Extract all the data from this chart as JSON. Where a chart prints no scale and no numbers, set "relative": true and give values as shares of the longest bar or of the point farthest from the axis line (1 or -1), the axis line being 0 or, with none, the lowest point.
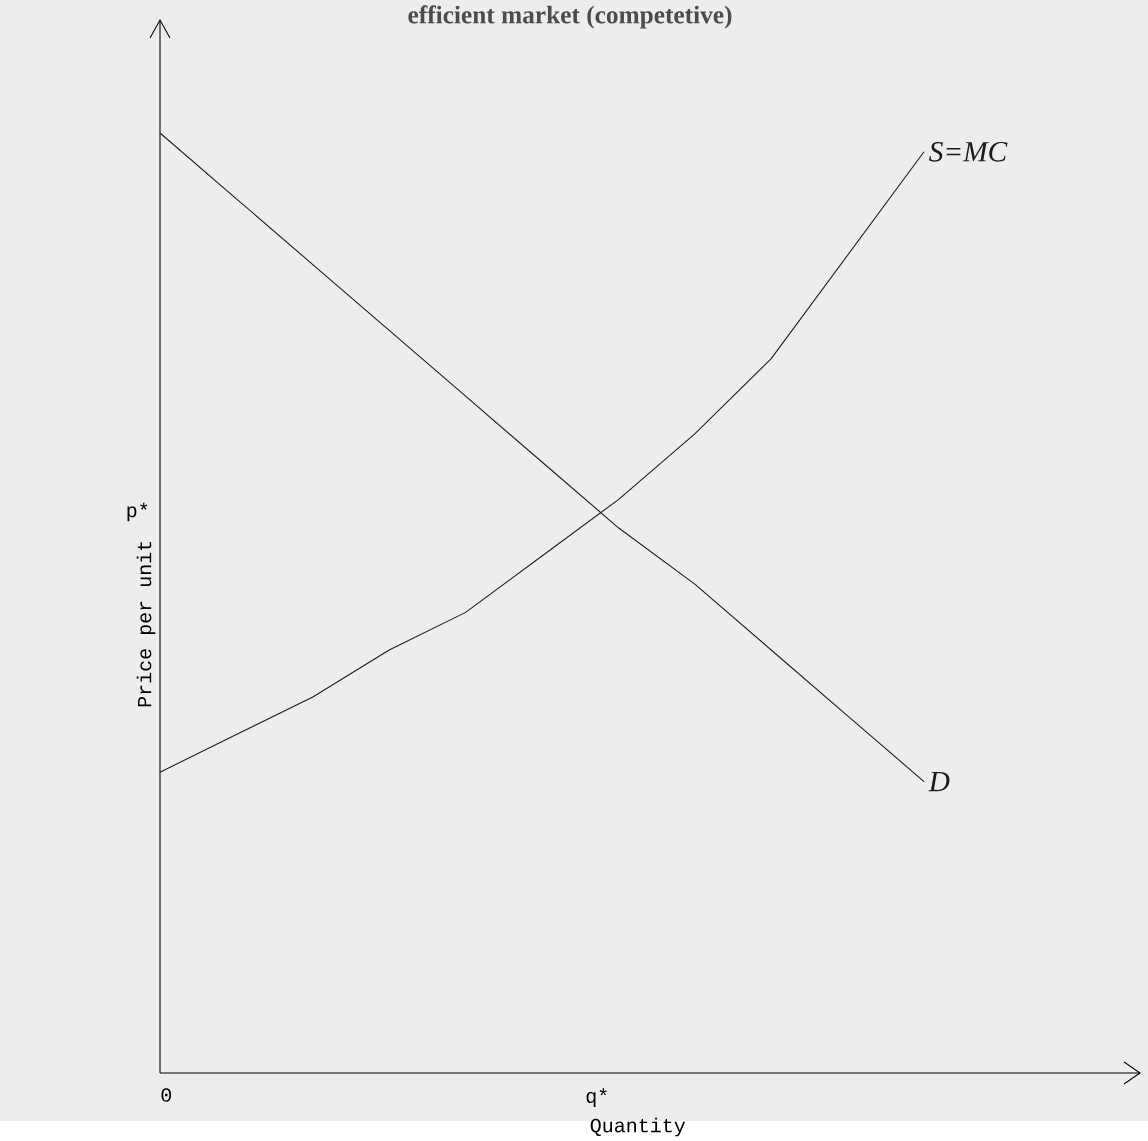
{
  "chart_data": {
    "type": "line",
    "title": "efficient market (competetive)",
    "xlabel": "Quantity",
    "ylabel": "Price per unit",
    "relative": true,
    "categories": [
      null,
      null,
      null,
      null,
      null,
      null,
      null,
      null,
      null,
      null,
      null
    ],
    "legend": false,
    "marker": "none",
    "line_style": "solid",
    "annotations": [
      "0",
      "q*",
      "p*"
    ],
    "series": [
      {
        "name": "S=MC",
        "color": "#1a1a1a",
        "values": [
          0.32,
          0.36,
          0.4,
          0.45,
          0.49,
          0.55,
          0.61,
          0.68,
          0.76,
          0.87,
          0.98
        ]
      },
      {
        "name": "D",
        "color": "#1a1a1a",
        "values": [
          1,
          0.93,
          0.86,
          0.79,
          0.72,
          0.65,
          0.58,
          0.52,
          0.45,
          0.38,
          0.31
        ]
      }
    ]
  }
}
